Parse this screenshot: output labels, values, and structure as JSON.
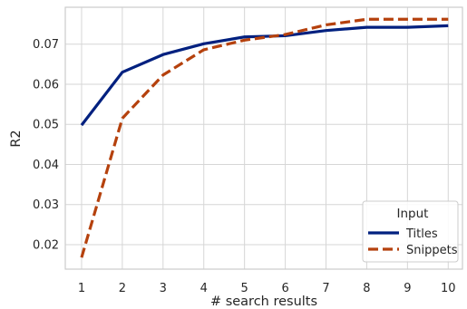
{
  "chart_data": {
    "type": "line",
    "xlabel": "# search results",
    "ylabel": "R2",
    "x": [
      1,
      2,
      3,
      4,
      5,
      6,
      7,
      8,
      9,
      10
    ],
    "xlim": [
      0.6,
      10.35
    ],
    "ylim": [
      0.0139,
      0.0792
    ],
    "yticks": [
      0.02,
      0.03,
      0.04,
      0.05,
      0.06,
      0.07
    ],
    "ytick_labels": [
      "0.02",
      "0.03",
      "0.04",
      "0.05",
      "0.06",
      "0.07"
    ],
    "xtick_labels": [
      "1",
      "2",
      "3",
      "4",
      "5",
      "6",
      "7",
      "8",
      "9",
      "10"
    ],
    "grid": true,
    "legend": {
      "title": "Input",
      "placement": "bottom-right"
    },
    "series": [
      {
        "name": "Titles",
        "color": "#00207f",
        "dash": "solid",
        "values": [
          0.0498,
          0.063,
          0.0674,
          0.0701,
          0.0718,
          0.0721,
          0.0734,
          0.0742,
          0.0742,
          0.0746
        ]
      },
      {
        "name": "Snippets",
        "color": "#b5410d",
        "dash": "dashed",
        "values": [
          0.0168,
          0.0515,
          0.0623,
          0.0686,
          0.071,
          0.0724,
          0.0748,
          0.0762,
          0.0762,
          0.0762
        ]
      }
    ]
  }
}
